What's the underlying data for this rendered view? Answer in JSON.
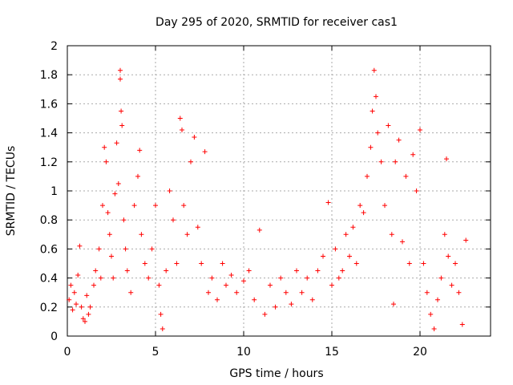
{
  "chart_data": {
    "type": "scatter",
    "title": "Day 295 of 2020, SRMTID for receiver cas1",
    "xlabel": "GPS time / hours",
    "ylabel": "SRMTID / TECUs",
    "xlim": [
      0,
      24
    ],
    "ylim": [
      0,
      2
    ],
    "xticks": [
      0,
      5,
      10,
      15,
      20
    ],
    "xtick_labels": [
      "0",
      "5",
      "10",
      "15",
      "20"
    ],
    "yticks": [
      0,
      0.2,
      0.4,
      0.6,
      0.8,
      1,
      1.2,
      1.4,
      1.6,
      1.8,
      2
    ],
    "ytick_labels": [
      "0",
      "0.2",
      "0.4",
      "0.6",
      "0.8",
      "1",
      "1.2",
      "1.4",
      "1.6",
      "1.8",
      "2"
    ],
    "grid": true,
    "marker": "+",
    "color": "#ff0000",
    "series": [
      {
        "name": "SRMTID",
        "points": [
          [
            0.1,
            0.25
          ],
          [
            0.2,
            0.35
          ],
          [
            0.3,
            0.18
          ],
          [
            0.4,
            0.3
          ],
          [
            0.5,
            0.22
          ],
          [
            0.6,
            0.42
          ],
          [
            0.7,
            0.62
          ],
          [
            0.8,
            0.2
          ],
          [
            0.9,
            0.12
          ],
          [
            1.0,
            0.1
          ],
          [
            1.1,
            0.28
          ],
          [
            1.2,
            0.15
          ],
          [
            1.3,
            0.2
          ],
          [
            1.5,
            0.35
          ],
          [
            1.6,
            0.45
          ],
          [
            1.8,
            0.6
          ],
          [
            1.9,
            0.4
          ],
          [
            2.0,
            0.9
          ],
          [
            2.1,
            1.3
          ],
          [
            2.2,
            1.2
          ],
          [
            2.3,
            0.85
          ],
          [
            2.4,
            0.7
          ],
          [
            2.5,
            0.55
          ],
          [
            2.6,
            0.4
          ],
          [
            2.7,
            0.98
          ],
          [
            2.8,
            1.33
          ],
          [
            2.9,
            1.05
          ],
          [
            3.0,
            1.83
          ],
          [
            3.0,
            1.77
          ],
          [
            3.05,
            1.55
          ],
          [
            3.1,
            1.45
          ],
          [
            3.2,
            0.8
          ],
          [
            3.3,
            0.6
          ],
          [
            3.4,
            0.45
          ],
          [
            3.6,
            0.3
          ],
          [
            3.8,
            0.9
          ],
          [
            4.0,
            1.1
          ],
          [
            4.1,
            1.28
          ],
          [
            4.2,
            0.7
          ],
          [
            4.4,
            0.5
          ],
          [
            4.6,
            0.4
          ],
          [
            4.8,
            0.6
          ],
          [
            5.0,
            0.9
          ],
          [
            5.2,
            0.35
          ],
          [
            5.3,
            0.15
          ],
          [
            5.4,
            0.05
          ],
          [
            5.6,
            0.45
          ],
          [
            5.8,
            1.0
          ],
          [
            6.0,
            0.8
          ],
          [
            6.2,
            0.5
          ],
          [
            6.4,
            1.5
          ],
          [
            6.5,
            1.42
          ],
          [
            6.6,
            0.9
          ],
          [
            6.8,
            0.7
          ],
          [
            7.0,
            1.2
          ],
          [
            7.2,
            1.37
          ],
          [
            7.4,
            0.75
          ],
          [
            7.6,
            0.5
          ],
          [
            7.8,
            1.27
          ],
          [
            8.0,
            0.3
          ],
          [
            8.2,
            0.4
          ],
          [
            8.5,
            0.25
          ],
          [
            8.8,
            0.5
          ],
          [
            9.0,
            0.35
          ],
          [
            9.3,
            0.42
          ],
          [
            9.6,
            0.3
          ],
          [
            10.0,
            0.38
          ],
          [
            10.3,
            0.45
          ],
          [
            10.6,
            0.25
          ],
          [
            10.9,
            0.73
          ],
          [
            11.2,
            0.15
          ],
          [
            11.5,
            0.35
          ],
          [
            11.8,
            0.2
          ],
          [
            12.1,
            0.4
          ],
          [
            12.4,
            0.3
          ],
          [
            12.7,
            0.22
          ],
          [
            13.0,
            0.45
          ],
          [
            13.3,
            0.3
          ],
          [
            13.6,
            0.4
          ],
          [
            13.9,
            0.25
          ],
          [
            14.2,
            0.45
          ],
          [
            14.5,
            0.55
          ],
          [
            14.8,
            0.92
          ],
          [
            15.0,
            0.35
          ],
          [
            15.2,
            0.6
          ],
          [
            15.4,
            0.4
          ],
          [
            15.6,
            0.45
          ],
          [
            15.8,
            0.7
          ],
          [
            16.0,
            0.55
          ],
          [
            16.2,
            0.75
          ],
          [
            16.4,
            0.5
          ],
          [
            16.6,
            0.9
          ],
          [
            16.8,
            0.85
          ],
          [
            17.0,
            1.1
          ],
          [
            17.2,
            1.3
          ],
          [
            17.3,
            1.55
          ],
          [
            17.4,
            1.83
          ],
          [
            17.5,
            1.65
          ],
          [
            17.6,
            1.4
          ],
          [
            17.8,
            1.2
          ],
          [
            18.0,
            0.9
          ],
          [
            18.2,
            1.45
          ],
          [
            18.4,
            0.7
          ],
          [
            18.5,
            0.22
          ],
          [
            18.6,
            1.2
          ],
          [
            18.8,
            1.35
          ],
          [
            19.0,
            0.65
          ],
          [
            19.2,
            1.1
          ],
          [
            19.4,
            0.5
          ],
          [
            19.6,
            1.25
          ],
          [
            19.8,
            1.0
          ],
          [
            20.0,
            1.42
          ],
          [
            20.2,
            0.5
          ],
          [
            20.4,
            0.3
          ],
          [
            20.6,
            0.15
          ],
          [
            20.8,
            0.05
          ],
          [
            21.0,
            0.25
          ],
          [
            21.2,
            0.4
          ],
          [
            21.4,
            0.7
          ],
          [
            21.5,
            1.22
          ],
          [
            21.6,
            0.55
          ],
          [
            21.8,
            0.35
          ],
          [
            22.0,
            0.5
          ],
          [
            22.2,
            0.3
          ],
          [
            22.4,
            0.08
          ],
          [
            22.6,
            0.66
          ]
        ]
      }
    ]
  }
}
